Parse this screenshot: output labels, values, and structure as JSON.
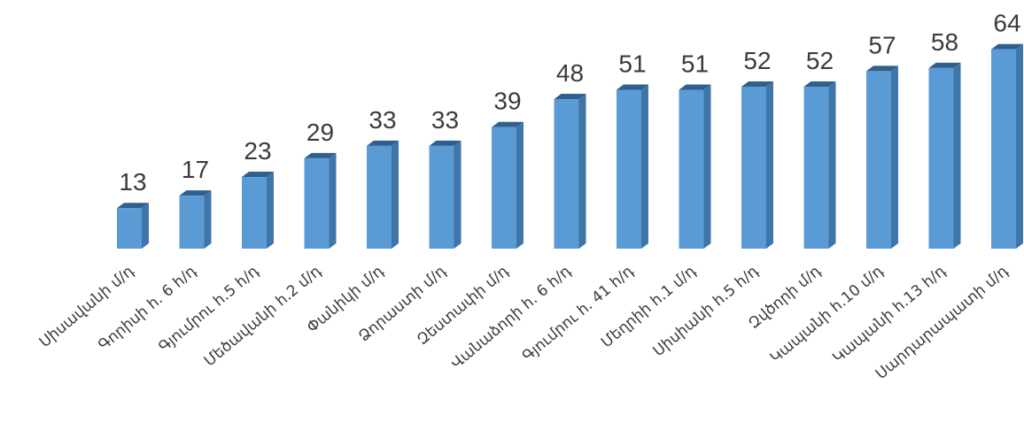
{
  "chart_data": {
    "type": "bar",
    "style": "3d-column",
    "title": "",
    "xlabel": "",
    "ylabel": "",
    "ylim": [
      0,
      64
    ],
    "grid": false,
    "legend": "none",
    "colors": {
      "bar_front": "#5b9bd5",
      "bar_side": "#3f75a7",
      "bar_top": "#2e5f8f",
      "label": "#3b3b3b"
    },
    "categories": [
      "Սիսավանի մ/դ",
      "Գորիսի հ. 6 հ/դ",
      "Գյումրու հ.5 հ/դ",
      "Մեծավանի  հ.2 մ/դ",
      "Փանիկի մ/դ",
      "Ձորաստի մ/դ",
      "Զեստափի մ/դ",
      "Վանաձորի հ. 6 հ/դ",
      "Գյումրու հ. 41 հ/դ",
      "Մեղրիի հ.1 մ/դ",
      "Սիսիանի հ.5 հ/դ",
      "Զվծորի մ/դ",
      "Կապանի հ.10 մ/դ",
      "Կապանի հ.13 հ/դ",
      "Սարդարապատի մ/դ"
    ],
    "values": [
      13,
      17,
      23,
      29,
      33,
      33,
      39,
      48,
      51,
      51,
      52,
      52,
      57,
      58,
      64
    ]
  }
}
